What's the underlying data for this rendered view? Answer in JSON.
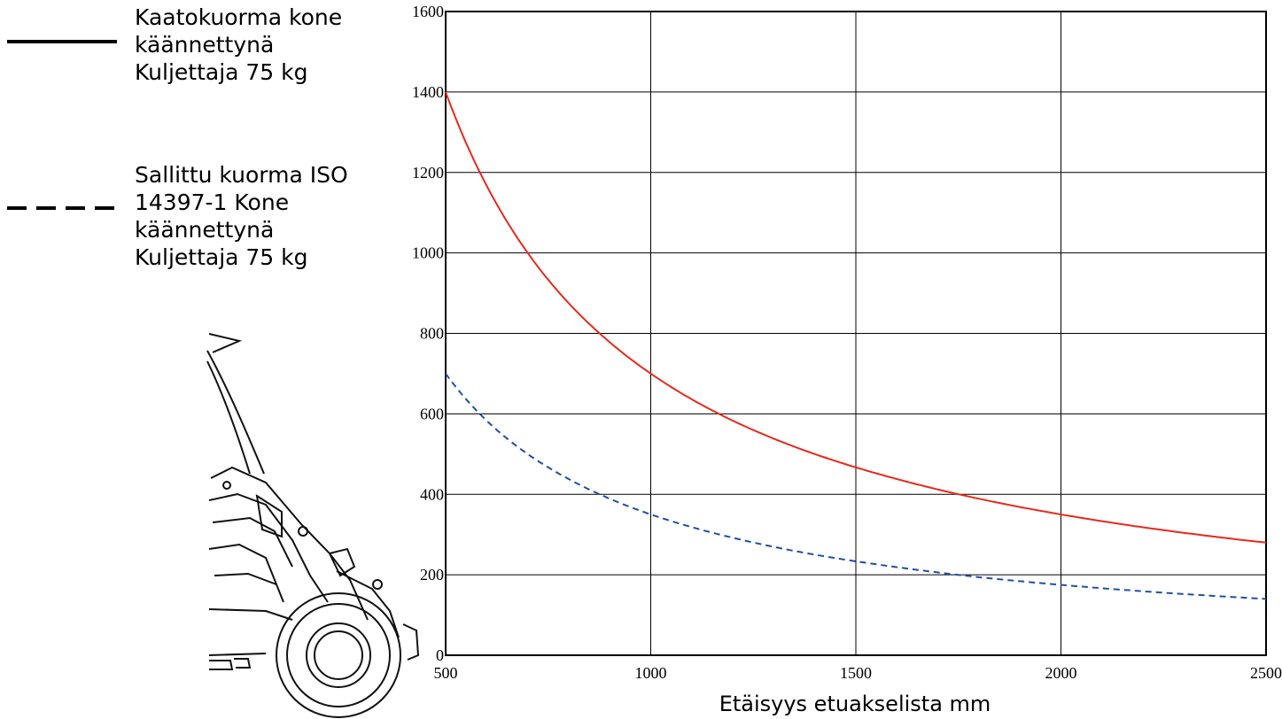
{
  "legend": {
    "item1": "Kaatokuorma kone\nkäännettynä\nKuljettaja 75 kg",
    "item2": "Sallittu kuorma ISO\n14397-1 Kone\nkäännettynä\nKuljettaja 75 kg"
  },
  "chart_data": {
    "type": "line",
    "xlabel": "Etäisyys etuakselista mm",
    "ylabel": "",
    "xlim": [
      500,
      2500
    ],
    "ylim": [
      0,
      1600
    ],
    "xticks": [
      "500",
      "1000",
      "1500",
      "2000",
      "2500"
    ],
    "yticks": [
      "0",
      "200",
      "400",
      "600",
      "800",
      "1000",
      "1200",
      "1400",
      "1600"
    ],
    "grid": true,
    "legend_position": "left",
    "x": [
      500,
      600,
      700,
      800,
      900,
      1000,
      1200,
      1400,
      1600,
      1800,
      2000,
      2200,
      2500
    ],
    "series": [
      {
        "name": "Kaatokuorma kone käännettynä Kuljettaja 75 kg",
        "color": "#e8291c",
        "style": "solid",
        "values": [
          1400,
          1167,
          1000,
          875,
          778,
          700,
          583,
          500,
          438,
          389,
          350,
          318,
          280
        ]
      },
      {
        "name": "Sallittu kuorma ISO 14397-1 Kone käännettynä Kuljettaja 75 kg",
        "color": "#1f4fa8",
        "style": "dashed",
        "values": [
          700,
          583,
          500,
          438,
          389,
          350,
          292,
          250,
          219,
          194,
          175,
          159,
          140
        ]
      }
    ]
  }
}
